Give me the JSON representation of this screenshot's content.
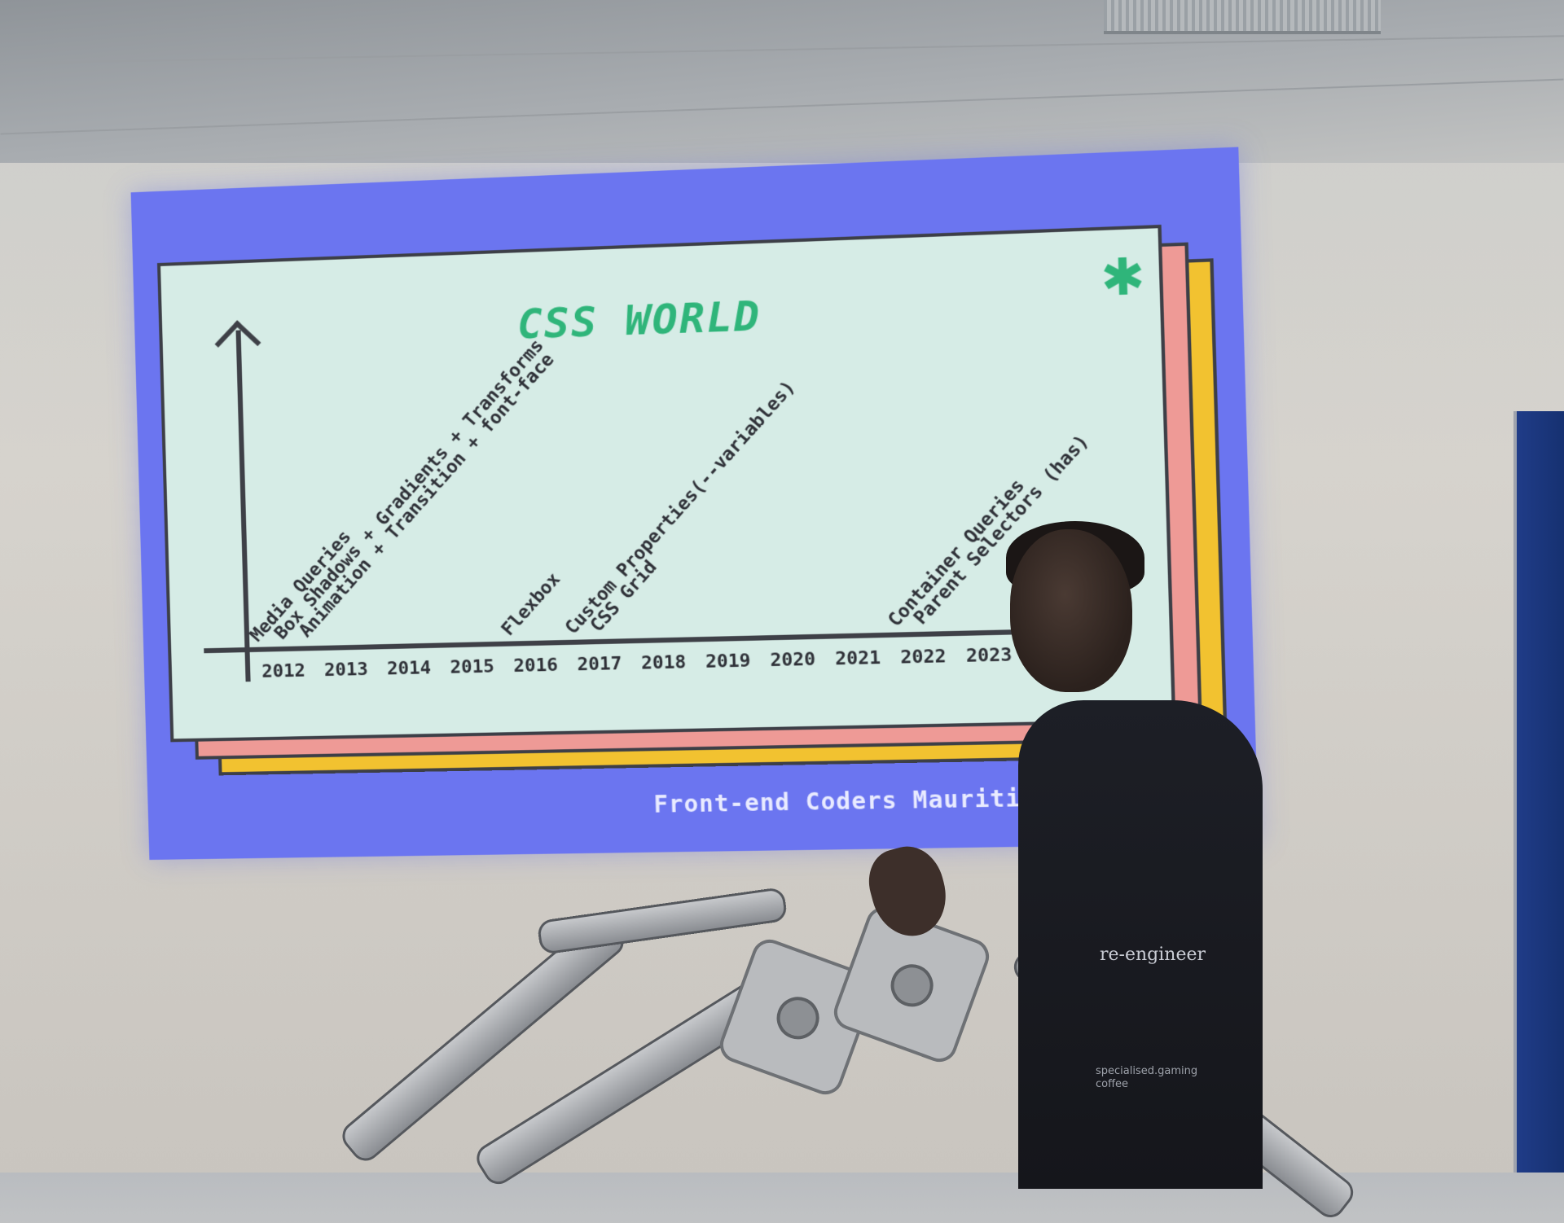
{
  "slide": {
    "title": "CSS WORLD",
    "asterisk": "✱",
    "footer": "Front-end Coders Mauritius",
    "years": [
      "2012",
      "2013",
      "2014",
      "2015",
      "2016",
      "2017",
      "2018",
      "2019",
      "2020",
      "2021",
      "2022",
      "2023"
    ],
    "features": [
      {
        "year": "2012",
        "label": "Media Queries"
      },
      {
        "year": "2012",
        "label": "Box Shadows + Gradients + Transforms"
      },
      {
        "year": "2012",
        "label": "Animation + Transition + font-face"
      },
      {
        "year": "2016",
        "label": "Flexbox"
      },
      {
        "year": "2017",
        "label": "Custom Properties(--variables)"
      },
      {
        "year": "2017",
        "label": "CSS Grid"
      },
      {
        "year": "2022",
        "label": "Container Queries"
      },
      {
        "year": "2022",
        "label": "Parent Selectors (has)"
      }
    ]
  },
  "presenter": {
    "shirt_text": "re-engineer",
    "shirt_sub": [
      "specialised.gaming",
      "coffee"
    ]
  },
  "colors": {
    "slide_background": "#6b75f0",
    "card_main": "#d6ece6",
    "card_pink": "#ee9a96",
    "card_yellow": "#f2c230",
    "accent_green": "#2fb57a"
  }
}
